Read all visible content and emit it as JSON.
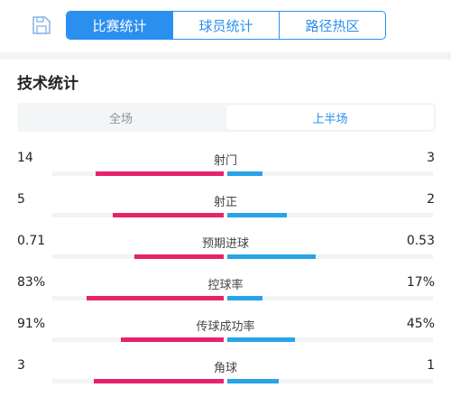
{
  "colors": {
    "accent": "#2b8ff0",
    "home_bar": "#e8216b",
    "away_bar": "#27a3e8",
    "track": "#f2f3f5"
  },
  "top_icon": "save-icon",
  "tabs": [
    {
      "label": "比赛统计",
      "active": true
    },
    {
      "label": "球员统计",
      "active": false
    },
    {
      "label": "路径热区",
      "active": false
    }
  ],
  "section_title": "技术统计",
  "period_tabs": [
    {
      "label": "全场",
      "active": false
    },
    {
      "label": "上半场",
      "active": true
    }
  ],
  "stats": [
    {
      "label": "射门",
      "home": "14",
      "away": "3",
      "home_share": 0.75,
      "away_share": 0.17
    },
    {
      "label": "射正",
      "home": "5",
      "away": "2",
      "home_share": 0.65,
      "away_share": 0.29
    },
    {
      "label": "预期进球",
      "home": "0.71",
      "away": "0.53",
      "home_share": 0.52,
      "away_share": 0.43
    },
    {
      "label": "控球率",
      "home": "83%",
      "away": "17%",
      "home_share": 0.8,
      "away_share": 0.17
    },
    {
      "label": "传球成功率",
      "home": "91%",
      "away": "45%",
      "home_share": 0.6,
      "away_share": 0.33
    },
    {
      "label": "角球",
      "home": "3",
      "away": "1",
      "home_share": 0.76,
      "away_share": 0.25
    }
  ]
}
